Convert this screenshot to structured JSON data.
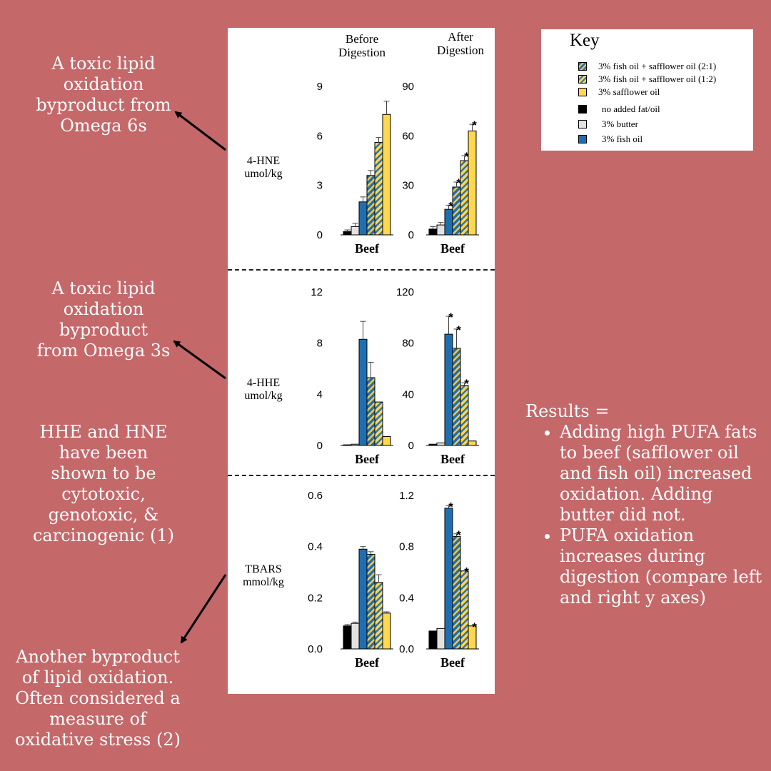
{
  "annotations": {
    "hne_note": "A toxic lipid\noxidation\nbyproduct from\nOmega 6s",
    "hhe_note": "A toxic lipid\noxidation\nbyproduct\nfrom Omega 3s",
    "toxicity_note": "HHE and HNE\nhave been\nshown to be\ncytotoxic,\ngenotoxic,  &\ncarcinogenic (1)",
    "tbars_note": "Another byproduct\nof lipid oxidation.\nOften considered a\nmeasure of\noxidative stress (2)"
  },
  "column_headers": {
    "before": "Before\nDigestion",
    "after": "After\nDigestion"
  },
  "row_labels": {
    "hne": "4-HNE\numol/kg",
    "hhe": "4-HHE\numol/kg",
    "tbars": "TBARS\nmmol/kg"
  },
  "key": {
    "title": "Key",
    "items": [
      {
        "label": "3% fish oil + safflower oil (2:1)",
        "pattern": "stripe-blue"
      },
      {
        "label": "3% fish oil + safflower oil (1:2)",
        "pattern": "stripe-yellow"
      },
      {
        "label": "3% safflower oil",
        "pattern": "yellow"
      },
      {
        "label": "no added fat/oil",
        "pattern": "black"
      },
      {
        "label": "3% butter",
        "pattern": "lightgray"
      },
      {
        "label": "3% fish oil",
        "pattern": "blue"
      }
    ]
  },
  "colors": {
    "background": "#c4686a",
    "black": "#000000",
    "lightgray": "#e2e2e2",
    "blue": "#1f6fb0",
    "yellow": "#ffd84d",
    "stripe_blue_base": "#1f6fb0",
    "stripe_blue_stripe": "#f2c94c",
    "stripe_yellow_base": "#ffd84d",
    "stripe_yellow_stripe": "#2b72b8"
  },
  "results": {
    "title": "Results =",
    "bullets": [
      "Adding high PUFA fats to beef (safflower oil and fish oil) increased oxidation. Adding butter did not.",
      "PUFA oxidation increases during digestion (compare left and right y axes)"
    ]
  },
  "chart_data": [
    {
      "type": "bar",
      "row": "hne",
      "column": "before",
      "ylabel": "4-HNE umol/kg",
      "xlabel": "Beef",
      "ylim": [
        0,
        9
      ],
      "ticks": [
        0,
        3,
        6,
        9
      ],
      "categories": [
        "no added fat/oil",
        "3% butter",
        "3% fish oil",
        "3% fish oil + safflower oil (2:1)",
        "3% fish oil + safflower oil (1:2)",
        "3% safflower oil"
      ],
      "values": [
        0.2,
        0.5,
        2.0,
        3.6,
        5.6,
        7.3
      ],
      "errors": [
        0.1,
        0.2,
        0.3,
        0.3,
        0.3,
        0.8
      ],
      "significant": [
        false,
        false,
        false,
        false,
        false,
        false
      ]
    },
    {
      "type": "bar",
      "row": "hne",
      "column": "after",
      "xlabel": "Beef",
      "ylim": [
        0,
        90
      ],
      "ticks": [
        0,
        30,
        60,
        90
      ],
      "categories": [
        "no added fat/oil",
        "3% butter",
        "3% fish oil",
        "3% fish oil + safflower oil (2:1)",
        "3% fish oil + safflower oil (1:2)",
        "3% safflower oil"
      ],
      "values": [
        3.5,
        6.0,
        15.5,
        29.0,
        45.0,
        63.0
      ],
      "errors": [
        1.5,
        1.5,
        2.5,
        3.0,
        3.0,
        4.0
      ],
      "significant": [
        false,
        false,
        true,
        true,
        true,
        true
      ]
    },
    {
      "type": "bar",
      "row": "hhe",
      "column": "before",
      "ylabel": "4-HHE umol/kg",
      "xlabel": "Beef",
      "ylim": [
        0,
        12
      ],
      "ticks": [
        0,
        4,
        8,
        12
      ],
      "categories": [
        "no added fat/oil",
        "3% butter",
        "3% fish oil",
        "3% fish oil + safflower oil (2:1)",
        "3% fish oil + safflower oil (1:2)",
        "3% safflower oil"
      ],
      "values": [
        0.05,
        0.1,
        8.3,
        5.3,
        3.4,
        0.7
      ],
      "errors": [
        0.0,
        0.0,
        1.4,
        1.2,
        0.0,
        0.0
      ],
      "significant": [
        false,
        false,
        false,
        false,
        false,
        false
      ]
    },
    {
      "type": "bar",
      "row": "hhe",
      "column": "after",
      "xlabel": "Beef",
      "ylim": [
        0,
        120
      ],
      "ticks": [
        0,
        40,
        80,
        120
      ],
      "categories": [
        "no added fat/oil",
        "3% butter",
        "3% fish oil",
        "3% fish oil + safflower oil (2:1)",
        "3% fish oil + safflower oil (1:2)",
        "3% safflower oil"
      ],
      "values": [
        1.0,
        2.0,
        87.0,
        76.0,
        47.0,
        3.5
      ],
      "errors": [
        0.0,
        0.0,
        14.0,
        15.0,
        2.0,
        0.0
      ],
      "significant": [
        false,
        false,
        true,
        true,
        true,
        false
      ]
    },
    {
      "type": "bar",
      "row": "tbars",
      "column": "before",
      "ylabel": "TBARS mmol/kg",
      "xlabel": "Beef",
      "ylim": [
        0,
        0.6
      ],
      "ticks": [
        0.0,
        0.2,
        0.4,
        0.6
      ],
      "ticklabels": [
        "0.0",
        "0.2",
        "0.4",
        "0.6"
      ],
      "categories": [
        "no added fat/oil",
        "3% butter",
        "3% fish oil",
        "3% fish oil + safflower oil (2:1)",
        "3% fish oil + safflower oil (1:2)",
        "3% safflower oil"
      ],
      "values": [
        0.09,
        0.1,
        0.39,
        0.37,
        0.26,
        0.14
      ],
      "errors": [
        0.005,
        0.005,
        0.01,
        0.01,
        0.03,
        0.005
      ],
      "significant": [
        false,
        false,
        false,
        false,
        false,
        false
      ]
    },
    {
      "type": "bar",
      "row": "tbars",
      "column": "after",
      "xlabel": "Beef",
      "ylim": [
        0,
        1.2
      ],
      "ticks": [
        0.0,
        0.4,
        0.8,
        1.2
      ],
      "ticklabels": [
        "0.0",
        "0.4",
        "0.8",
        "1.2"
      ],
      "categories": [
        "no added fat/oil",
        "3% butter",
        "3% fish oil",
        "3% fish oil + safflower oil (2:1)",
        "3% fish oil + safflower oil (1:2)",
        "3% safflower oil"
      ],
      "values": [
        0.14,
        0.16,
        1.1,
        0.88,
        0.61,
        0.18
      ],
      "errors": [
        0.0,
        0.0,
        0.02,
        0.02,
        0.0,
        0.0
      ],
      "significant": [
        false,
        false,
        true,
        true,
        true,
        true
      ]
    }
  ]
}
